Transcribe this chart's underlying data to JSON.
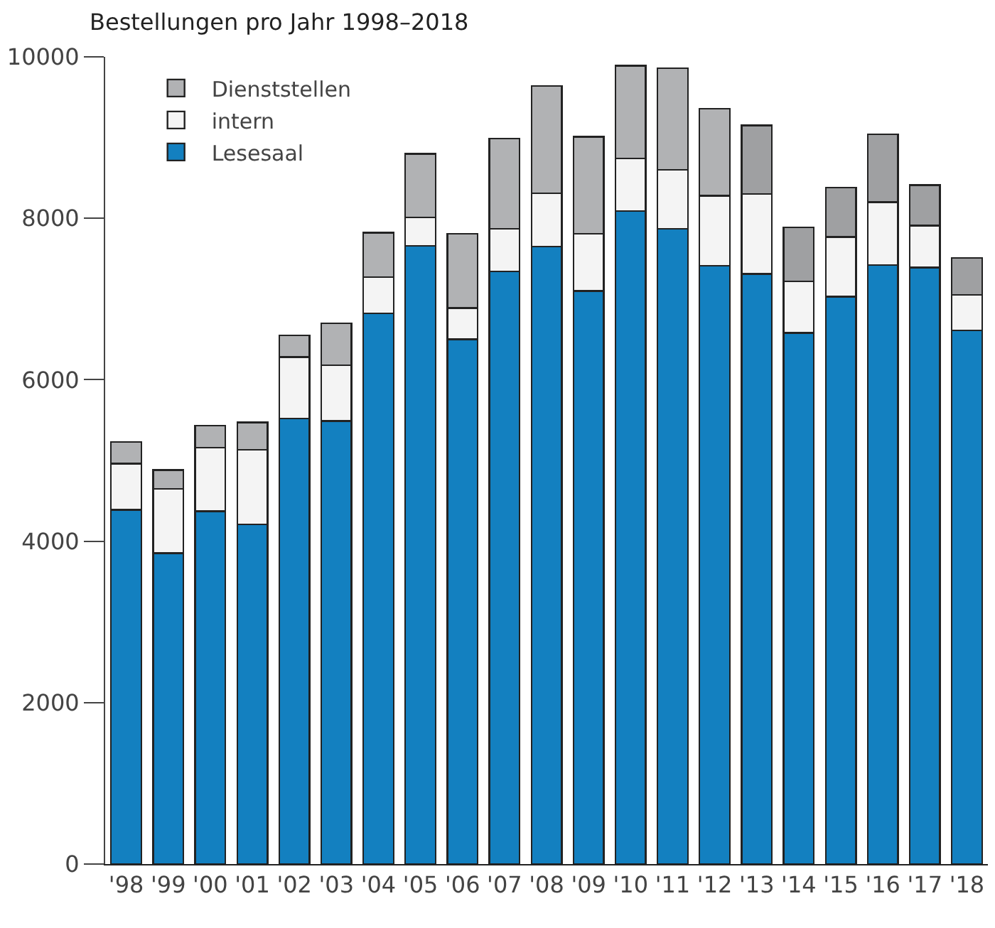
{
  "chart_data": {
    "type": "bar",
    "title": "Bestellungen pro Jahr 1998–2018",
    "stacked": true,
    "categories": [
      "'98",
      "'99",
      "'00",
      "'01",
      "'02",
      "'03",
      "'04",
      "'05",
      "'06",
      "'07",
      "'08",
      "'09",
      "'10",
      "'11",
      "'12",
      "'13",
      "'14",
      "'15",
      "'16",
      "'17",
      "'18"
    ],
    "series": [
      {
        "name": "Lesesaal",
        "color": "#1380c0",
        "values": [
          4390,
          3850,
          4370,
          4210,
          5520,
          5490,
          6820,
          7660,
          6500,
          7340,
          7650,
          7100,
          8090,
          7870,
          7410,
          7310,
          6580,
          7030,
          7420,
          7390,
          6610
        ]
      },
      {
        "name": "intern",
        "color": "#f4f4f4",
        "values": [
          570,
          800,
          790,
          920,
          760,
          690,
          450,
          350,
          390,
          530,
          660,
          710,
          650,
          730,
          870,
          990,
          640,
          740,
          780,
          520,
          440
        ]
      },
      {
        "name": "Dienststellen",
        "color": "#b1b2b4",
        "colors": [
          "#b1b2b4",
          "#b1b2b4",
          "#b1b2b4",
          "#b1b2b4",
          "#b1b2b4",
          "#b1b2b4",
          "#b1b2b4",
          "#b1b2b4",
          "#b1b2b4",
          "#b1b2b4",
          "#b1b2b4",
          "#b1b2b4",
          "#b1b2b4",
          "#b1b2b4",
          "#b1b2b4",
          "#9fa0a2",
          "#9fa0a2",
          "#9fa0a2",
          "#9fa0a2",
          "#9fa0a2",
          "#9fa0a2"
        ],
        "values": [
          270,
          230,
          270,
          340,
          270,
          520,
          550,
          790,
          920,
          1120,
          1330,
          1200,
          1150,
          1260,
          1080,
          850,
          670,
          610,
          840,
          500,
          460
        ]
      }
    ],
    "ylim": [
      0,
      10000
    ],
    "yticks": [
      0,
      2000,
      4000,
      6000,
      8000,
      10000
    ],
    "legend": "top left"
  }
}
